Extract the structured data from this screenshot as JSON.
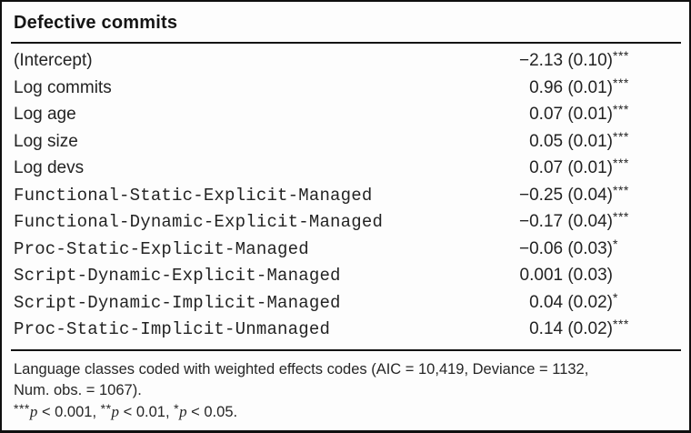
{
  "figure": {
    "title": "Defective commits",
    "rows": [
      {
        "label": "(Intercept)",
        "label_style": "sans",
        "estimate": "−2.13 (0.10)",
        "stars": "***"
      },
      {
        "label": "Log commits",
        "label_style": "sans",
        "estimate": "0.96 (0.01)",
        "stars": "***"
      },
      {
        "label": "Log age",
        "label_style": "sans",
        "estimate": "0.07 (0.01)",
        "stars": "***"
      },
      {
        "label": "Log size",
        "label_style": "sans",
        "estimate": "0.05 (0.01)",
        "stars": "***"
      },
      {
        "label": "Log devs",
        "label_style": "sans",
        "estimate": "0.07 (0.01)",
        "stars": "***"
      },
      {
        "label": "Functional-Static-Explicit-Managed",
        "label_style": "mono",
        "estimate": "−0.25 (0.04)",
        "stars": "***"
      },
      {
        "label": "Functional-Dynamic-Explicit-Managed",
        "label_style": "mono",
        "estimate": "−0.17 (0.04)",
        "stars": "***"
      },
      {
        "label": "Proc-Static-Explicit-Managed",
        "label_style": "mono",
        "estimate": "−0.06 (0.03)",
        "stars": "*"
      },
      {
        "label": "Script-Dynamic-Explicit-Managed",
        "label_style": "mono",
        "estimate": "0.001 (0.03)",
        "stars": ""
      },
      {
        "label": "Script-Dynamic-Implicit-Managed",
        "label_style": "mono",
        "estimate": "0.04 (0.02)",
        "stars": "*"
      },
      {
        "label": "Proc-Static-Implicit-Unmanaged",
        "label_style": "mono",
        "estimate": "0.14 (0.02)",
        "stars": "***"
      }
    ],
    "footnote_lines": [
      "Language classes coded with weighted effects codes (AIC = 10,419, Deviance = 1132,",
      "Num. obs. = 1067)."
    ],
    "significance": [
      {
        "stars": "***",
        "var": "p",
        "rest": " < 0.001, "
      },
      {
        "stars": "**",
        "var": "p",
        "rest": " < 0.01, "
      },
      {
        "stars": "*",
        "var": "p",
        "rest": " < 0.05."
      }
    ],
    "colors": {
      "text": "#232323",
      "rule": "#141414",
      "background": "#fdfdfd"
    }
  }
}
